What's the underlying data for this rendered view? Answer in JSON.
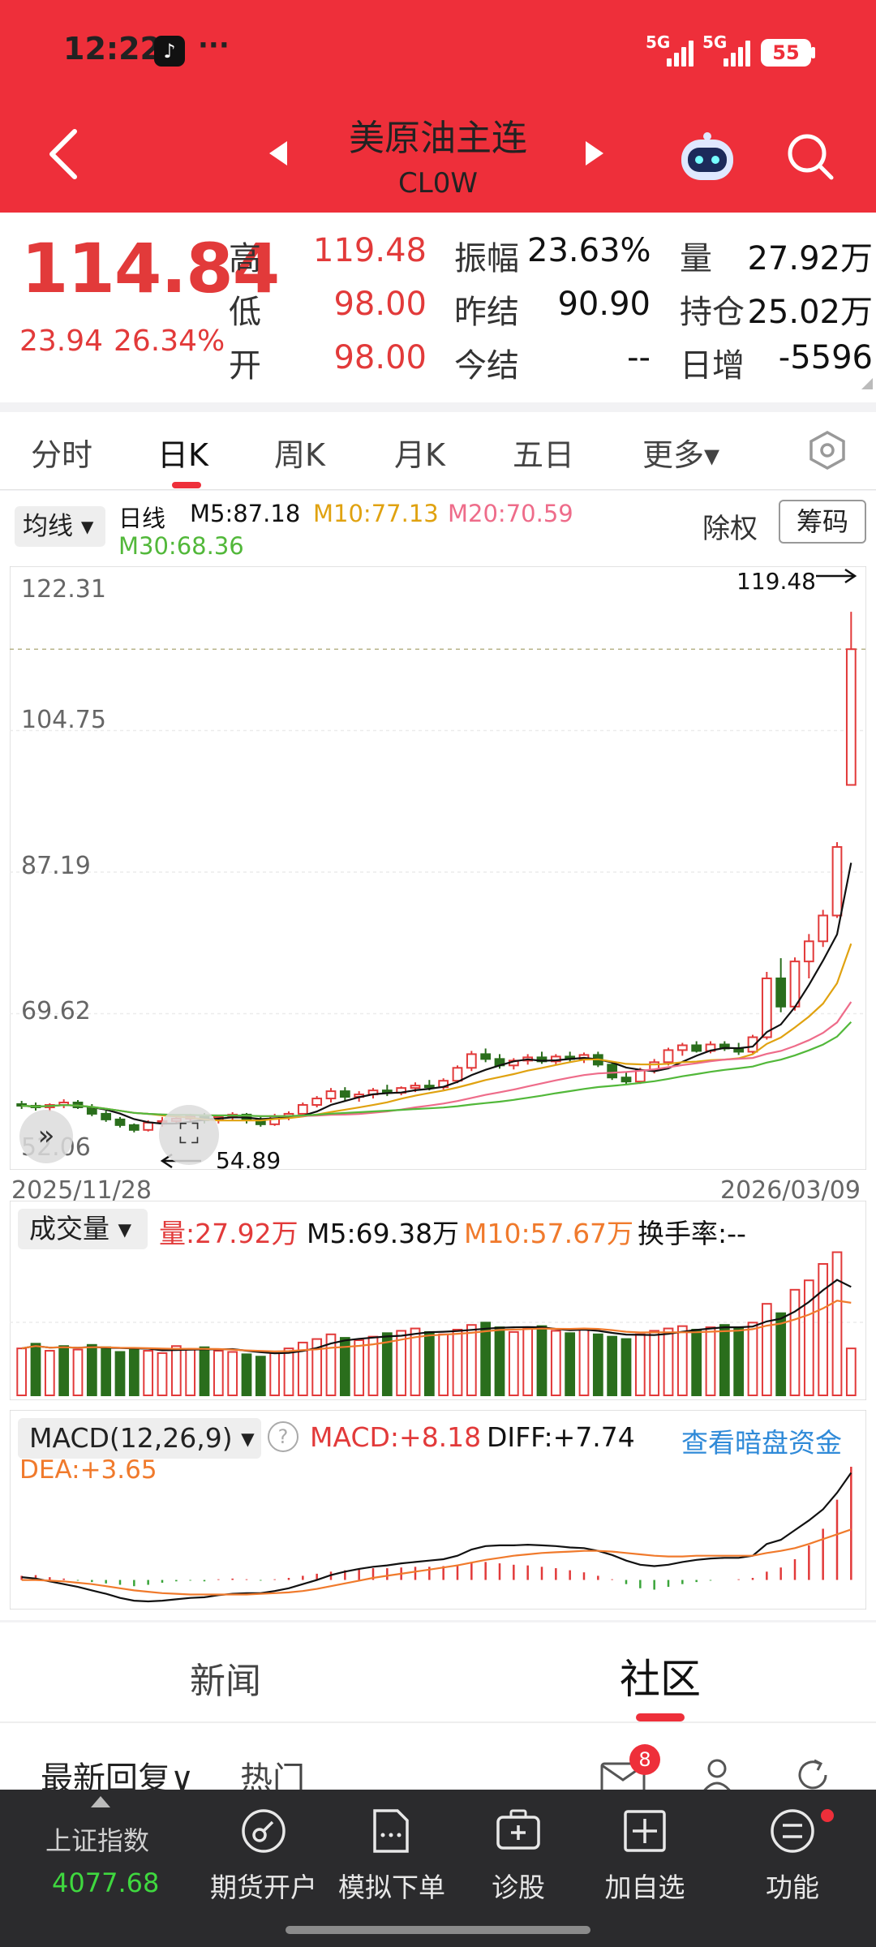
{
  "status_bar": {
    "time": "12:22",
    "extra": "···",
    "signal_1": "5G",
    "signal_2": "5G",
    "battery": "55"
  },
  "header": {
    "title": "美原油主连",
    "subtitle": "CL0W"
  },
  "quote": {
    "price": "114.84",
    "change": "23.94",
    "change_pct": "26.34%",
    "high_label": "高",
    "high": "119.48",
    "low_label": "低",
    "low": "98.00",
    "open_label": "开",
    "open": "98.00",
    "amplitude_label": "振幅",
    "amplitude": "23.63%",
    "prev_settle_label": "昨结",
    "prev_settle": "90.90",
    "settle_label": "今结",
    "settle": "--",
    "volume_label": "量",
    "volume": "27.92万",
    "open_interest_label": "持仓",
    "open_interest": "25.02万",
    "daily_change_label": "日增",
    "daily_change": "-5596"
  },
  "tabs": [
    "分时",
    "日K",
    "周K",
    "月K",
    "五日",
    "更多▾"
  ],
  "ma_bar": {
    "selector": "均线 ▾",
    "period": "日线",
    "m5": "M5:87.18",
    "m10": "M10:77.13",
    "m20": "M20:70.59",
    "m30": "M30:68.36",
    "ex_rights": "除权",
    "chips": "筹码"
  },
  "colors": {
    "up": "#e23a3a",
    "down": "#2a6e1c",
    "m5": "#111111",
    "m10": "#e0a210",
    "m20": "#ee6c8a",
    "m30": "#52b83a",
    "macd_diff": "#111111",
    "macd_dea": "#f07a2c",
    "accent": "#ee2f3a"
  },
  "chart_data": [
    {
      "type": "candlestick",
      "y_ticks": [
        "122.31",
        "104.75",
        "87.19",
        "69.62",
        "52.06"
      ],
      "ylim": [
        52.06,
        122.31
      ],
      "x_start_label": "2025/11/28",
      "x_end_label": "2026/03/09",
      "max_annotation": "119.48",
      "min_annotation": "54.89",
      "last_close": 114.84,
      "candles": [
        [
          58.4,
          58.8,
          57.8,
          58.2
        ],
        [
          58.2,
          58.6,
          57.6,
          58.0
        ],
        [
          58.0,
          58.5,
          57.5,
          58.3
        ],
        [
          58.3,
          59.0,
          57.9,
          58.6
        ],
        [
          58.6,
          58.9,
          57.8,
          58.0
        ],
        [
          58.0,
          58.4,
          56.9,
          57.2
        ],
        [
          57.2,
          57.6,
          56.2,
          56.5
        ],
        [
          56.5,
          56.8,
          55.5,
          55.8
        ],
        [
          55.8,
          56.0,
          54.89,
          55.2
        ],
        [
          55.2,
          56.4,
          55.0,
          56.1
        ],
        [
          56.1,
          56.8,
          55.6,
          56.3
        ],
        [
          56.3,
          56.9,
          55.9,
          56.6
        ],
        [
          56.6,
          57.2,
          56.1,
          56.9
        ],
        [
          56.9,
          57.3,
          56.0,
          56.4
        ],
        [
          56.4,
          57.0,
          56.0,
          56.8
        ],
        [
          56.8,
          57.4,
          56.3,
          57.1
        ],
        [
          57.1,
          57.3,
          56.0,
          56.5
        ],
        [
          56.5,
          56.9,
          55.6,
          55.9
        ],
        [
          55.9,
          57.2,
          55.7,
          56.9
        ],
        [
          56.9,
          57.5,
          56.4,
          57.2
        ],
        [
          57.2,
          58.6,
          57.0,
          58.3
        ],
        [
          58.3,
          59.4,
          58.0,
          59.1
        ],
        [
          59.1,
          60.4,
          58.6,
          60.0
        ],
        [
          60.0,
          60.5,
          58.8,
          59.3
        ],
        [
          59.3,
          60.0,
          58.7,
          59.6
        ],
        [
          59.6,
          60.4,
          59.1,
          60.1
        ],
        [
          60.1,
          60.8,
          59.4,
          59.8
        ],
        [
          59.8,
          60.6,
          59.5,
          60.4
        ],
        [
          60.4,
          61.1,
          59.9,
          60.7
        ],
        [
          60.7,
          61.4,
          60.1,
          60.5
        ],
        [
          60.5,
          61.6,
          60.2,
          61.3
        ],
        [
          61.3,
          63.2,
          61.0,
          62.9
        ],
        [
          62.9,
          65.0,
          62.5,
          64.6
        ],
        [
          64.6,
          65.3,
          63.6,
          64.0
        ],
        [
          64.0,
          64.6,
          62.8,
          63.2
        ],
        [
          63.2,
          64.1,
          62.7,
          63.8
        ],
        [
          63.8,
          64.6,
          63.3,
          64.2
        ],
        [
          64.2,
          64.9,
          63.4,
          63.7
        ],
        [
          63.7,
          64.6,
          63.2,
          64.3
        ],
        [
          64.3,
          64.9,
          63.7,
          64.0
        ],
        [
          64.0,
          64.8,
          63.5,
          64.5
        ],
        [
          64.5,
          64.9,
          63.0,
          63.3
        ],
        [
          63.3,
          63.7,
          61.4,
          61.7
        ],
        [
          61.7,
          62.4,
          60.8,
          61.2
        ],
        [
          61.2,
          62.9,
          60.9,
          62.6
        ],
        [
          62.6,
          64.0,
          62.2,
          63.6
        ],
        [
          63.6,
          65.4,
          63.2,
          65.1
        ],
        [
          65.1,
          66.0,
          64.4,
          65.7
        ],
        [
          65.7,
          66.2,
          64.8,
          65.0
        ],
        [
          65.0,
          66.2,
          64.7,
          65.8
        ],
        [
          65.8,
          66.2,
          65.0,
          65.3
        ],
        [
          65.3,
          66.0,
          64.5,
          64.9
        ],
        [
          64.9,
          67.0,
          64.7,
          66.7
        ],
        [
          66.7,
          74.8,
          66.4,
          74.0
        ],
        [
          74.0,
          76.5,
          69.8,
          70.5
        ],
        [
          70.5,
          76.6,
          70.0,
          76.1
        ],
        [
          76.1,
          79.5,
          74.0,
          78.6
        ],
        [
          78.6,
          82.5,
          77.9,
          81.8
        ],
        [
          81.8,
          90.9,
          81.5,
          90.3
        ],
        [
          98.0,
          119.48,
          98.0,
          114.84
        ]
      ]
    },
    {
      "type": "bar",
      "series_label": "成交量",
      "current": "量:27.92万",
      "m5": "M5:69.38万",
      "m10": "M10:57.67万",
      "turnover": "换手率:--",
      "values": [
        40,
        44,
        38,
        42,
        39,
        43,
        41,
        37,
        40,
        38,
        36,
        42,
        39,
        41,
        38,
        37,
        35,
        33,
        36,
        40,
        45,
        48,
        52,
        49,
        47,
        50,
        53,
        55,
        57,
        54,
        52,
        56,
        60,
        62,
        58,
        54,
        57,
        59,
        55,
        53,
        56,
        52,
        50,
        48,
        52,
        55,
        57,
        59,
        56,
        58,
        60,
        57,
        62,
        78,
        70,
        90,
        98,
        112,
        122,
        40
      ],
      "up": [
        true,
        false,
        true,
        false,
        true,
        false,
        false,
        false,
        false,
        true,
        true,
        true,
        true,
        false,
        true,
        true,
        false,
        false,
        true,
        true,
        true,
        true,
        true,
        false,
        true,
        true,
        false,
        true,
        true,
        false,
        true,
        true,
        true,
        false,
        false,
        true,
        true,
        false,
        true,
        false,
        true,
        false,
        false,
        false,
        true,
        true,
        true,
        true,
        false,
        true,
        false,
        false,
        true,
        true,
        false,
        true,
        true,
        true,
        true,
        true
      ]
    },
    {
      "type": "bar",
      "series_label": "MACD(12,26,9) ▾",
      "macd": "MACD:+8.18",
      "diff": "DIFF:+7.74",
      "dea": "DEA:+3.65",
      "link": "查看暗盘资金",
      "values": [
        0.3,
        0.35,
        0.2,
        0.1,
        -0.05,
        -0.15,
        -0.25,
        -0.35,
        -0.45,
        -0.35,
        -0.2,
        -0.1,
        -0.05,
        -0.1,
        0.05,
        0.1,
        0.05,
        -0.05,
        0.05,
        0.15,
        0.3,
        0.45,
        0.6,
        0.7,
        0.8,
        0.85,
        0.85,
        0.9,
        0.95,
        0.95,
        1.0,
        1.1,
        1.3,
        1.3,
        1.2,
        1.1,
        1.05,
        0.95,
        0.85,
        0.7,
        0.55,
        0.3,
        0.05,
        -0.3,
        -0.6,
        -0.7,
        -0.5,
        -0.3,
        -0.15,
        -0.05,
        0.0,
        0.05,
        0.15,
        0.6,
        0.9,
        1.5,
        2.5,
        3.7,
        5.8,
        8.18
      ],
      "diff_line": [
        0.2,
        0.1,
        -0.1,
        -0.3,
        -0.5,
        -0.75,
        -1.0,
        -1.3,
        -1.5,
        -1.55,
        -1.5,
        -1.4,
        -1.3,
        -1.25,
        -1.1,
        -1.0,
        -0.95,
        -0.95,
        -0.8,
        -0.6,
        -0.3,
        0.0,
        0.35,
        0.6,
        0.8,
        0.95,
        1.05,
        1.2,
        1.3,
        1.4,
        1.5,
        1.75,
        2.2,
        2.45,
        2.5,
        2.5,
        2.55,
        2.5,
        2.45,
        2.35,
        2.3,
        2.1,
        1.8,
        1.4,
        1.1,
        1.0,
        1.1,
        1.3,
        1.45,
        1.55,
        1.6,
        1.6,
        1.75,
        2.6,
        2.9,
        3.6,
        4.3,
        5.1,
        6.3,
        7.74
      ],
      "dea_line": [
        0.0,
        0.0,
        -0.05,
        -0.1,
        -0.2,
        -0.3,
        -0.45,
        -0.6,
        -0.75,
        -0.85,
        -0.95,
        -1.0,
        -1.05,
        -1.05,
        -1.05,
        -1.05,
        -1.05,
        -1.0,
        -0.95,
        -0.9,
        -0.8,
        -0.65,
        -0.45,
        -0.25,
        -0.05,
        0.15,
        0.3,
        0.45,
        0.6,
        0.75,
        0.9,
        1.05,
        1.25,
        1.45,
        1.6,
        1.75,
        1.85,
        1.95,
        2.0,
        2.05,
        2.1,
        2.1,
        2.05,
        1.95,
        1.85,
        1.75,
        1.7,
        1.7,
        1.75,
        1.75,
        1.75,
        1.75,
        1.75,
        1.95,
        2.1,
        2.3,
        2.6,
        2.95,
        3.3,
        3.65
      ]
    }
  ],
  "news_tabs": {
    "news": "新闻",
    "community": "社区",
    "latest_reply": "最新回复∨",
    "hot": "热门",
    "mail_badge": "8"
  },
  "bottom_bar": {
    "index_name": "上证指数",
    "index_value": "4077.68",
    "items": [
      "期货开户",
      "模拟下单",
      "诊股",
      "加自选",
      "功能"
    ]
  }
}
